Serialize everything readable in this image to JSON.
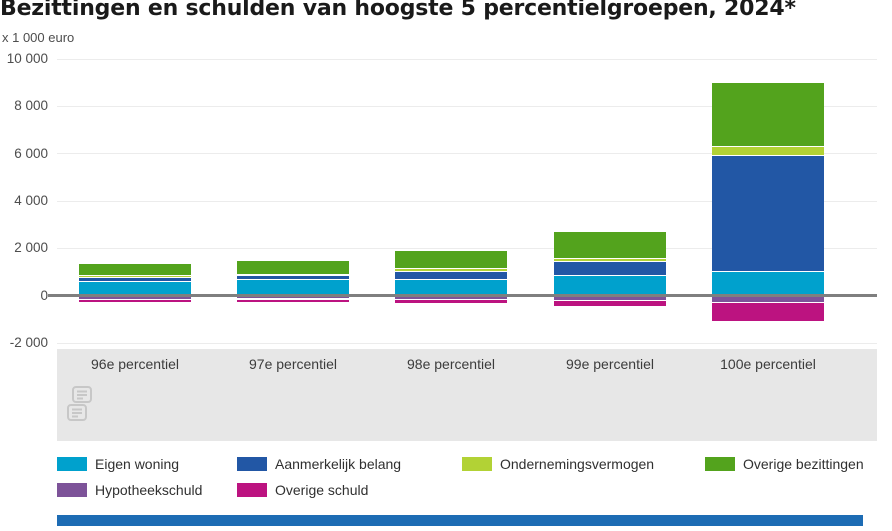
{
  "title": "Bezittingen en schulden van hoogste 5 percentielgroepen, 2024*",
  "unit_label": "x 1 000 euro",
  "chart_data": {
    "type": "bar",
    "stacked": true,
    "title": "Bezittingen en schulden van hoogste 5 percentielgroepen, 2024*",
    "ylabel": "x 1 000 euro",
    "categories": [
      "96e percentiel",
      "97e percentiel",
      "98e percentiel",
      "99e percentiel",
      "100e percentiel"
    ],
    "series": [
      {
        "name": "Eigen woning",
        "color": "#00a1cd",
        "values": [
          590,
          680,
          660,
          810,
          1000
        ]
      },
      {
        "name": "Aanmerkelijk belang",
        "color": "#2257a5",
        "values": [
          150,
          160,
          330,
          610,
          4900
        ]
      },
      {
        "name": "Ondernemingsvermogen",
        "color": "#b2d235",
        "values": [
          100,
          50,
          130,
          130,
          400
        ]
      },
      {
        "name": "Overige bezittingen",
        "color": "#53a31d",
        "values": [
          490,
          590,
          760,
          1160,
          2700
        ]
      },
      {
        "name": "Hypotheekschuld",
        "color": "#7d5399",
        "values": [
          -140,
          -120,
          -150,
          -200,
          -260
        ]
      },
      {
        "name": "Overige schuld",
        "color": "#bc1380",
        "values": [
          -110,
          -160,
          -180,
          -240,
          -800
        ]
      }
    ],
    "ylim": [
      -2000,
      10000
    ],
    "yticks": [
      {
        "value": 10000,
        "label": "10 000"
      },
      {
        "value": 8000,
        "label": "8 000"
      },
      {
        "value": 6000,
        "label": "6 000"
      },
      {
        "value": 4000,
        "label": "4 000"
      },
      {
        "value": 2000,
        "label": "2 000"
      },
      {
        "value": 0,
        "label": "0"
      },
      {
        "value": -2000,
        "label": "-2 000"
      }
    ],
    "grid": true,
    "legend_position": "bottom",
    "zero_line_color": "#7f7f7f",
    "gridline_color": "#ececec",
    "band_color": "#e7e7e7"
  },
  "logo": {
    "name": "cbs-logo"
  },
  "footer": {
    "accent_color": "#1d6cb4"
  }
}
